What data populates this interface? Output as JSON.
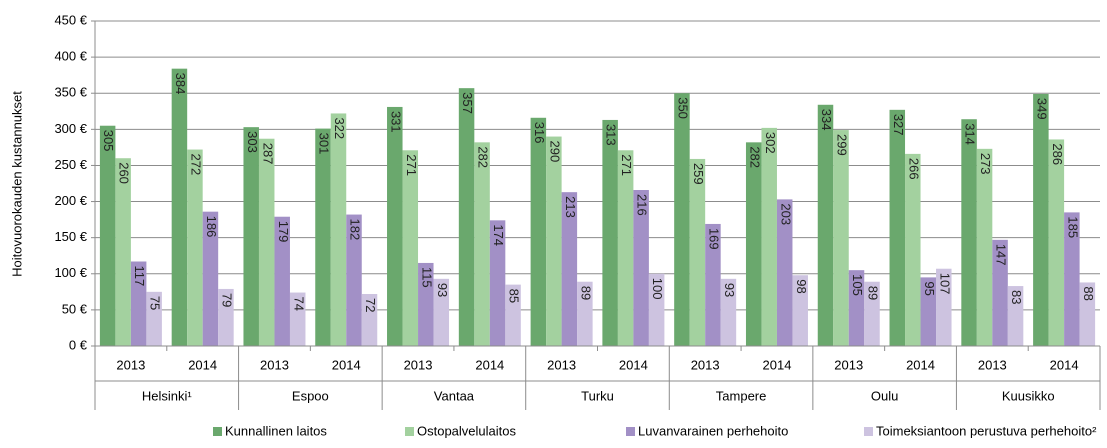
{
  "chart_data": {
    "type": "bar",
    "y_label": "Hoitovuorokauden kustannukset",
    "categories": [
      "2013",
      "2014",
      "2013",
      "2014",
      "2013",
      "2014",
      "2013",
      "2014",
      "2013",
      "2014",
      "2013",
      "2014",
      "2013",
      "2014"
    ],
    "groups": [
      "Helsinki¹",
      "Espoo",
      "Vantaa",
      "Turku",
      "Tampere",
      "Oulu",
      "Kuusikko"
    ],
    "series": [
      {
        "name": "Kunnallinen laitos",
        "color": "#6aa86d",
        "values": [
          305,
          384,
          303,
          301,
          331,
          357,
          316,
          313,
          350,
          282,
          334,
          327,
          314,
          349
        ]
      },
      {
        "name": "Ostopalvelulaitos",
        "color": "#a3d19f",
        "values": [
          260,
          272,
          287,
          322,
          271,
          282,
          290,
          271,
          259,
          302,
          299,
          266,
          273,
          286
        ]
      },
      {
        "name": "Luvanvarainen perhehoito",
        "color": "#a290c6",
        "values": [
          117,
          186,
          179,
          182,
          115,
          174,
          213,
          216,
          169,
          203,
          105,
          95,
          147,
          185
        ]
      },
      {
        "name": "Toimeksiantoon perustuva perhehoito²",
        "color": "#cdc3e0",
        "values": [
          75,
          79,
          74,
          72,
          93,
          85,
          89,
          100,
          93,
          98,
          89,
          107,
          83,
          88
        ]
      }
    ],
    "ylim": [
      0,
      450
    ],
    "yticks": [
      {
        "value": 0,
        "label": "0 €"
      },
      {
        "value": 50,
        "label": "50 €"
      },
      {
        "value": 100,
        "label": "100 €"
      },
      {
        "value": 150,
        "label": "150 €"
      },
      {
        "value": 200,
        "label": "200 €"
      },
      {
        "value": 250,
        "label": "250 €"
      },
      {
        "value": 300,
        "label": "300 €"
      },
      {
        "value": 350,
        "label": "350 €"
      },
      {
        "value": 400,
        "label": "400 €"
      },
      {
        "value": 450,
        "label": "450 €"
      }
    ],
    "grid": true,
    "legend": "bottom"
  }
}
